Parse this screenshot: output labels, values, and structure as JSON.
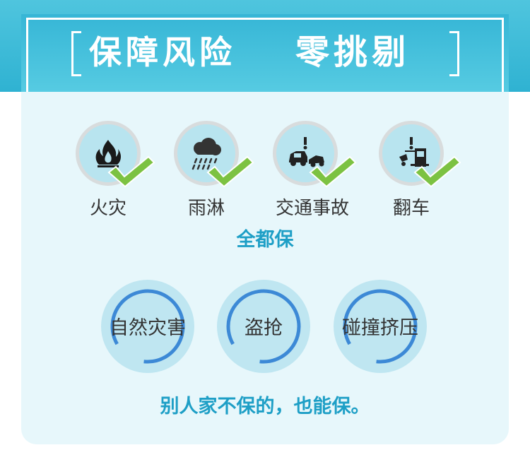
{
  "header": {
    "title_left": "保障风险",
    "title_right": "零挑剔"
  },
  "risks": [
    {
      "label": "火灾",
      "icon": "fire-icon"
    },
    {
      "label": "雨淋",
      "icon": "rain-cloud-icon"
    },
    {
      "label": "交通事故",
      "icon": "car-crash-icon"
    },
    {
      "label": "翻车",
      "icon": "rollover-icon"
    }
  ],
  "summary": "全都保",
  "categories": [
    {
      "label": "自然灾害"
    },
    {
      "label": "盗抢"
    },
    {
      "label": "碰撞挤压"
    }
  ],
  "slogan": "别人家不保的，也能保。",
  "colors": {
    "header_blue": "#36b6d6",
    "panel_bg": "#e7f7fb",
    "accent_blue": "#1e9fc6",
    "check_green": "#7cc242",
    "ring_blue": "#3c89d6"
  }
}
